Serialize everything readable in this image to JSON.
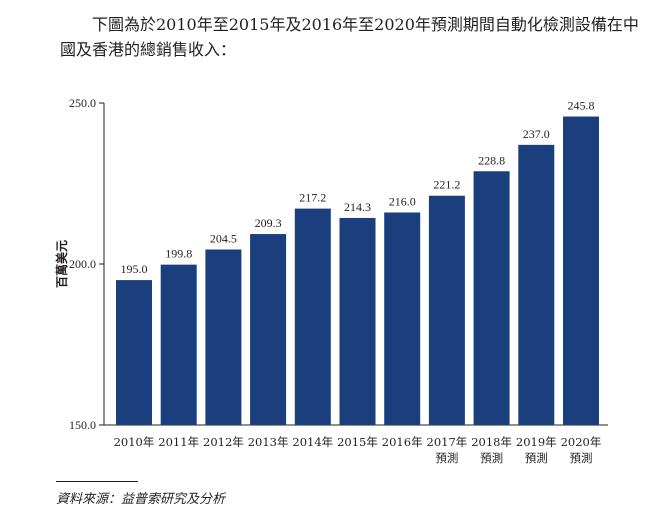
{
  "intro": "下圖為於2010年至2015年及2016年至2020年預測期間自動化檢測設備在中國及香港的總銷售收入：",
  "source": "資料來源：益普索研究及分析",
  "chart_data": {
    "type": "bar",
    "categories": [
      [
        "2010年"
      ],
      [
        "2011年"
      ],
      [
        "2012年"
      ],
      [
        "2013年"
      ],
      [
        "2014年"
      ],
      [
        "2015年"
      ],
      [
        "2016年"
      ],
      [
        "2017年",
        "預測"
      ],
      [
        "2018年",
        "預測"
      ],
      [
        "2019年",
        "預測"
      ],
      [
        "2020年",
        "預測"
      ]
    ],
    "values": [
      195.0,
      199.8,
      204.5,
      209.3,
      217.2,
      214.3,
      216.0,
      221.2,
      228.8,
      237.0,
      245.8
    ],
    "value_labels": [
      "195.0",
      "199.8",
      "204.5",
      "209.3",
      "217.2",
      "214.3",
      "216.0",
      "221.2",
      "228.8",
      "237.0",
      "245.8"
    ],
    "ylabel": "百萬美元",
    "ylim": [
      150,
      250
    ],
    "yticks": [
      150,
      200,
      250
    ],
    "ytick_labels": [
      "150.0",
      "200.0",
      "250.0"
    ],
    "grid": false,
    "legend": "none",
    "bar_color": "#1b3f7c"
  }
}
